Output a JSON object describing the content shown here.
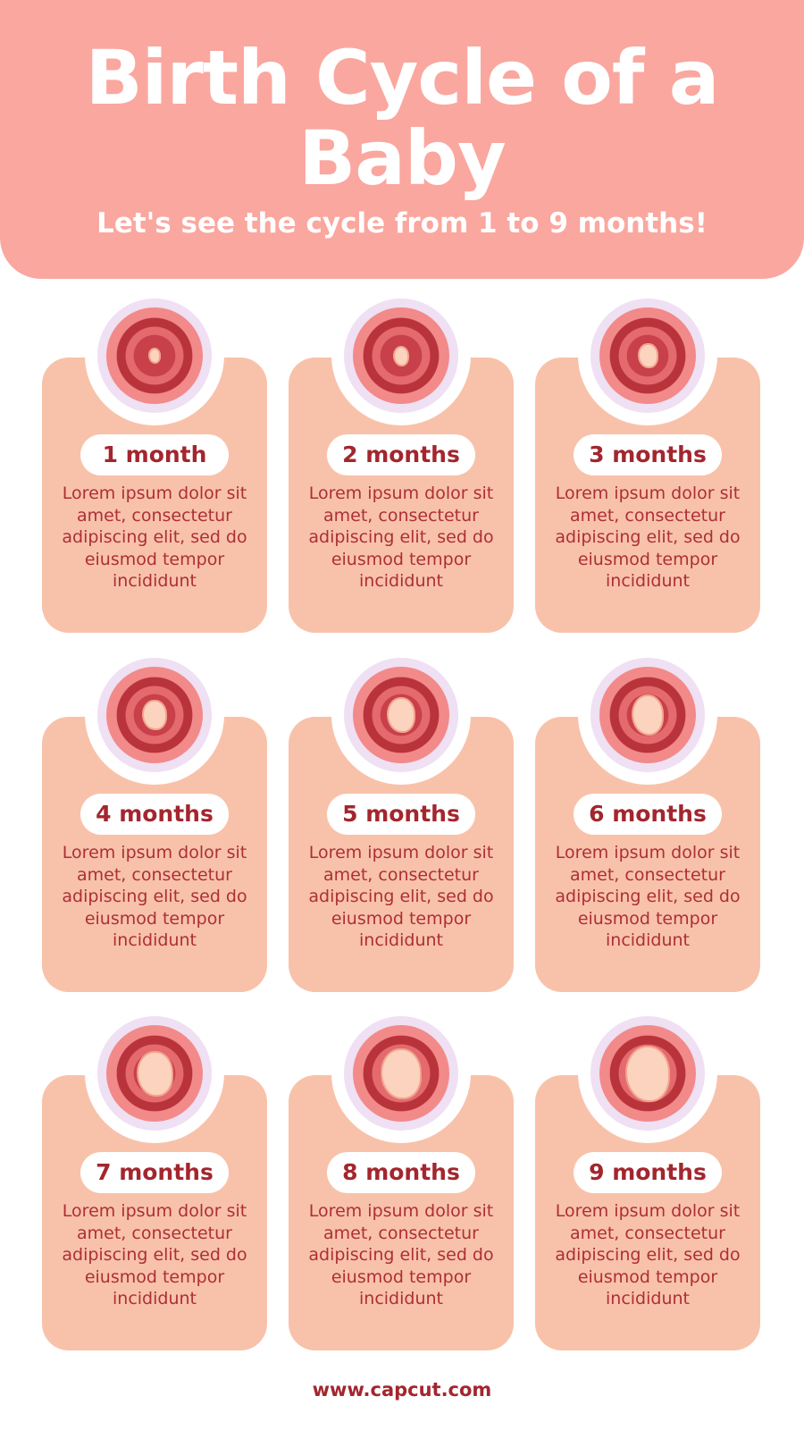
{
  "header": {
    "title_line1": "Birth Cycle of a",
    "title_line2": "Baby",
    "subtitle": "Let's see the cycle from 1 to 9 months!"
  },
  "colors": {
    "header_bg": "#faa79f",
    "card_bg": "#f8c2aa",
    "text_accent": "#a3262e"
  },
  "cards": [
    {
      "label": "1 month",
      "text": "Lorem ipsum dolor sit amet, consectetur adipiscing elit, sed do eiusmod tempor incididunt"
    },
    {
      "label": "2 months",
      "text": "Lorem ipsum dolor sit amet, consectetur adipiscing elit, sed do eiusmod tempor incididunt"
    },
    {
      "label": "3 months",
      "text": "Lorem ipsum dolor sit amet, consectetur adipiscing elit, sed do eiusmod tempor incididunt"
    },
    {
      "label": "4 months",
      "text": "Lorem ipsum dolor sit amet, consectetur adipiscing elit, sed do eiusmod tempor incididunt"
    },
    {
      "label": "5 months",
      "text": "Lorem ipsum dolor sit amet, consectetur adipiscing elit, sed do eiusmod tempor incididunt"
    },
    {
      "label": "6 months",
      "text": "Lorem ipsum dolor sit amet, consectetur adipiscing elit, sed do eiusmod tempor incididunt"
    },
    {
      "label": "7 months",
      "text": "Lorem ipsum dolor sit amet, consectetur adipiscing elit, sed do eiusmod tempor incididunt"
    },
    {
      "label": "8 months",
      "text": "Lorem ipsum dolor sit amet, consectetur adipiscing elit, sed do eiusmod tempor incididunt"
    },
    {
      "label": "9 months",
      "text": "Lorem ipsum dolor sit amet, consectetur adipiscing elit, sed do eiusmod tempor incididunt"
    }
  ],
  "footer": {
    "url": "www.capcut.com"
  }
}
